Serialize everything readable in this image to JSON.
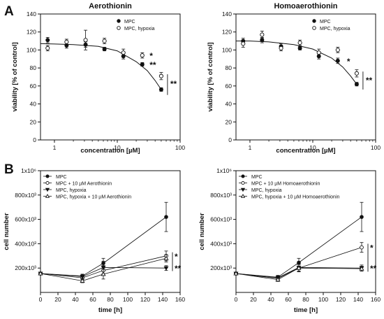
{
  "panel_labels": [
    "A",
    "B"
  ],
  "chart_data": [
    {
      "type": "scatter",
      "title": "Aerothionin",
      "xlabel": "concentration [µM]",
      "ylabel": "viability [% of control]",
      "xscale": "log",
      "xlim": [
        0.6,
        100
      ],
      "ylim": [
        0,
        140
      ],
      "xticks": [
        "1",
        "10",
        "100"
      ],
      "yticks": [
        "0",
        "20",
        "40",
        "60",
        "80",
        "100",
        "120",
        "140"
      ],
      "legend_position": "top-right",
      "series": [
        {
          "name": "MPC",
          "marker": "filled-circle",
          "x": [
            0.78,
            1.56,
            3.13,
            6.25,
            12.5,
            25,
            50
          ],
          "y": [
            111,
            105,
            106,
            101,
            93,
            84,
            56
          ],
          "err": [
            3,
            3,
            3,
            2,
            3,
            2,
            2
          ]
        },
        {
          "name": "MPC, hypoxia",
          "marker": "open-circle",
          "x": [
            0.78,
            1.56,
            3.13,
            6.25,
            12.5,
            25,
            50
          ],
          "y": [
            102,
            109,
            111,
            110,
            97,
            94,
            71
          ],
          "err": [
            3,
            3,
            11,
            3,
            4,
            3,
            4
          ]
        }
      ],
      "fit": {
        "x": [
          0.6,
          1,
          2,
          5,
          10,
          20,
          30,
          40,
          50
        ],
        "y": [
          107,
          106.7,
          106,
          104,
          99,
          87,
          77,
          66,
          56
        ]
      },
      "annotations": [
        {
          "text": "*",
          "x": 28,
          "y": 94
        },
        {
          "text": "**",
          "x": 28,
          "y": 84
        },
        {
          "text": "**",
          "x": 60,
          "y": 63
        }
      ]
    },
    {
      "type": "scatter",
      "title": "Homoaerothionin",
      "xlabel": "concentration [µM]",
      "ylabel": "viability [% of control]",
      "xscale": "log",
      "xlim": [
        0.6,
        100
      ],
      "ylim": [
        0,
        140
      ],
      "xticks": [
        "1",
        "10",
        "100"
      ],
      "yticks": [
        "0",
        "20",
        "40",
        "60",
        "80",
        "100",
        "120",
        "140"
      ],
      "legend_position": "top-right",
      "series": [
        {
          "name": "MPC",
          "marker": "filled-circle",
          "x": [
            0.78,
            1.56,
            3.13,
            6.25,
            12.5,
            25,
            50
          ],
          "y": [
            110,
            111,
            104,
            102,
            93,
            88,
            62
          ],
          "err": [
            3,
            3,
            3,
            2,
            3,
            3,
            2
          ]
        },
        {
          "name": "MPC, hypoxia",
          "marker": "open-circle",
          "x": [
            0.78,
            1.56,
            3.13,
            6.25,
            12.5,
            25,
            50
          ],
          "y": [
            107,
            117,
            102,
            108,
            97,
            100,
            74
          ],
          "err": [
            4,
            4,
            3,
            3,
            4,
            3,
            4
          ]
        }
      ],
      "fit": {
        "x": [
          0.6,
          1,
          2,
          5,
          10,
          20,
          30,
          40,
          50
        ],
        "y": [
          110,
          110,
          109,
          106,
          101,
          91,
          81,
          71,
          62
        ]
      },
      "annotations": [
        {
          "text": "*",
          "x": 30,
          "y": 88
        },
        {
          "text": "**",
          "x": 65,
          "y": 67
        }
      ]
    },
    {
      "type": "line",
      "xlabel": "time [h]",
      "ylabel": "cell number",
      "xlim": [
        0,
        160
      ],
      "ylim": [
        0,
        1000000
      ],
      "xticks": [
        "0",
        "20",
        "40",
        "60",
        "80",
        "100",
        "120",
        "140",
        "160"
      ],
      "ytick_labels": [
        "200x10³",
        "400x10³",
        "600x10³",
        "800x10³",
        "1x10⁶"
      ],
      "ytick_values": [
        200000,
        400000,
        600000,
        800000,
        1000000
      ],
      "legend_position": "top-left",
      "x": [
        0,
        48,
        72,
        144
      ],
      "series": [
        {
          "name": "MPC",
          "marker": "filled-circle",
          "values": [
            155000,
            135000,
            240000,
            620000
          ],
          "err": [
            5000,
            15000,
            40000,
            120000
          ]
        },
        {
          "name": "MPC + 10 µM Aerothionin",
          "marker": "open-circle",
          "values": [
            155000,
            120000,
            180000,
            300000
          ],
          "err": [
            5000,
            15000,
            40000,
            40000
          ]
        },
        {
          "name": "MPC, hypoxia",
          "marker": "filled-triangle-down",
          "values": [
            155000,
            130000,
            205000,
            200000
          ],
          "err": [
            5000,
            15000,
            50000,
            20000
          ]
        },
        {
          "name": "MPC, hypoxia + 10 µM Aerothionin",
          "marker": "open-triangle-up",
          "values": [
            155000,
            95000,
            150000,
            280000
          ],
          "err": [
            5000,
            15000,
            40000,
            30000
          ]
        }
      ],
      "annotations": [
        {
          "text": "*",
          "x": 150,
          "y": 300000
        },
        {
          "text": "**",
          "x": 150,
          "y": 200000
        }
      ]
    },
    {
      "type": "line",
      "xlabel": "time [h]",
      "ylabel": "cell number",
      "xlim": [
        0,
        160
      ],
      "ylim": [
        0,
        1000000
      ],
      "xticks": [
        "0",
        "20",
        "40",
        "60",
        "80",
        "100",
        "120",
        "140",
        "160"
      ],
      "ytick_labels": [
        "200x10³",
        "400x10³",
        "600x10³",
        "800x10³",
        "1x10⁶"
      ],
      "ytick_values": [
        200000,
        400000,
        600000,
        800000,
        1000000
      ],
      "legend_position": "top-left",
      "x": [
        0,
        48,
        72,
        144
      ],
      "series": [
        {
          "name": "MPC",
          "marker": "filled-circle",
          "values": [
            155000,
            125000,
            245000,
            620000
          ],
          "err": [
            5000,
            15000,
            35000,
            120000
          ]
        },
        {
          "name": "MPC + 10 µM Homoaerothionin",
          "marker": "open-circle",
          "values": [
            155000,
            115000,
            200000,
            370000
          ],
          "err": [
            5000,
            15000,
            30000,
            40000
          ]
        },
        {
          "name": "MPC, hypoxia",
          "marker": "filled-triangle-down",
          "values": [
            155000,
            120000,
            205000,
            200000
          ],
          "err": [
            5000,
            15000,
            30000,
            25000
          ]
        },
        {
          "name": "MPC, hypoxia + 10 µM Homoaerothionin",
          "marker": "open-triangle-up",
          "values": [
            155000,
            105000,
            200000,
            195000
          ],
          "err": [
            5000,
            15000,
            30000,
            20000
          ]
        }
      ],
      "annotations": [
        {
          "text": "*",
          "x": 150,
          "y": 370000
        },
        {
          "text": "**",
          "x": 150,
          "y": 200000
        }
      ]
    }
  ]
}
